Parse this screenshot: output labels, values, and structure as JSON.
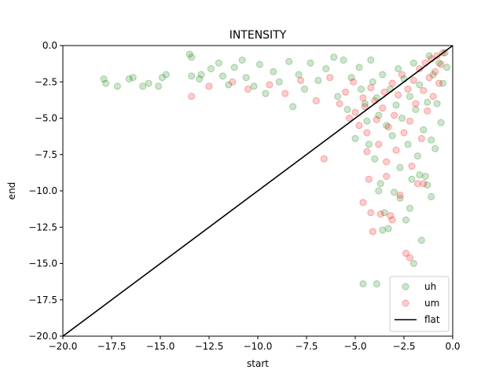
{
  "chart_data": {
    "type": "scatter",
    "title": "INTENSITY",
    "xlabel": "start",
    "ylabel": "end",
    "xlim": [
      -20.0,
      0.0
    ],
    "ylim": [
      -20.0,
      0.0
    ],
    "xticks": [
      "−20.0",
      "−17.5",
      "−15.0",
      "−12.5",
      "−10.0",
      "−7.5",
      "−5.0",
      "−2.5",
      "0.0"
    ],
    "yticks": [
      "0.0",
      "−2.5",
      "−5.0",
      "−7.5",
      "−10.0",
      "−12.5",
      "−15.0",
      "−17.5",
      "−20.0"
    ],
    "grid": false,
    "legend_position": "bottom-right",
    "series": [
      {
        "name": "uh",
        "kind": "scatter",
        "color": "#008000",
        "alpha": 0.2,
        "points": [
          [
            -17.9,
            -2.3
          ],
          [
            -17.8,
            -2.6
          ],
          [
            -17.2,
            -2.8
          ],
          [
            -16.6,
            -2.3
          ],
          [
            -16.4,
            -2.2
          ],
          [
            -15.9,
            -2.8
          ],
          [
            -15.6,
            -2.6
          ],
          [
            -15.1,
            -2.8
          ],
          [
            -14.9,
            -2.2
          ],
          [
            -14.7,
            -2.0
          ],
          [
            -13.5,
            -0.6
          ],
          [
            -13.4,
            -0.8
          ],
          [
            -13.4,
            -2.1
          ],
          [
            -13.0,
            -2.3
          ],
          [
            -12.9,
            -2.0
          ],
          [
            -12.4,
            -1.6
          ],
          [
            -12.0,
            -1.2
          ],
          [
            -11.8,
            -2.1
          ],
          [
            -11.5,
            -2.7
          ],
          [
            -11.2,
            -1.5
          ],
          [
            -10.8,
            -1.0
          ],
          [
            -10.6,
            -2.2
          ],
          [
            -10.2,
            -2.8
          ],
          [
            -9.9,
            -1.3
          ],
          [
            -9.6,
            -3.3
          ],
          [
            -9.2,
            -1.8
          ],
          [
            -8.9,
            -2.5
          ],
          [
            -8.4,
            -1.1
          ],
          [
            -8.2,
            -4.2
          ],
          [
            -7.9,
            -2.0
          ],
          [
            -7.6,
            -3.0
          ],
          [
            -7.3,
            -1.2
          ],
          [
            -6.9,
            -2.4
          ],
          [
            -6.5,
            -1.6
          ],
          [
            -6.1,
            -0.8
          ],
          [
            -5.9,
            -3.5
          ],
          [
            -5.6,
            -1.0
          ],
          [
            -5.4,
            -4.4
          ],
          [
            -5.2,
            -2.2
          ],
          [
            -5.0,
            -6.4
          ],
          [
            -4.8,
            -1.5
          ],
          [
            -4.7,
            -3.0
          ],
          [
            -4.5,
            -4.0
          ],
          [
            -4.4,
            -5.2
          ],
          [
            -4.3,
            -6.8
          ],
          [
            -4.2,
            -1.0
          ],
          [
            -4.1,
            -2.5
          ],
          [
            -4.0,
            -7.8
          ],
          [
            -3.9,
            -3.6
          ],
          [
            -3.8,
            -4.8
          ],
          [
            -3.7,
            -9.5
          ],
          [
            -3.6,
            -2.0
          ],
          [
            -3.5,
            -11.5
          ],
          [
            -3.4,
            -5.5
          ],
          [
            -3.3,
            -12.6
          ],
          [
            -3.2,
            -3.0
          ],
          [
            -3.1,
            -6.2
          ],
          [
            -3.0,
            -10.1
          ],
          [
            -2.9,
            -4.1
          ],
          [
            -2.8,
            -1.6
          ],
          [
            -2.7,
            -8.4
          ],
          [
            -2.6,
            -5.0
          ],
          [
            -2.5,
            -2.3
          ],
          [
            -2.4,
            -12.0
          ],
          [
            -2.3,
            -6.8
          ],
          [
            -2.2,
            -3.5
          ],
          [
            -2.1,
            -9.2
          ],
          [
            -2.0,
            -1.2
          ],
          [
            -1.9,
            -4.4
          ],
          [
            -1.8,
            -7.6
          ],
          [
            -1.7,
            -2.7
          ],
          [
            -1.6,
            -13.4
          ],
          [
            -1.5,
            -5.8
          ],
          [
            -1.4,
            -9.0
          ],
          [
            -1.3,
            -3.9
          ],
          [
            -1.2,
            -0.7
          ],
          [
            -1.1,
            -6.5
          ],
          [
            -1.0,
            -2.0
          ],
          [
            -0.9,
            -7.1
          ],
          [
            -0.8,
            -4.0
          ],
          [
            -0.7,
            -1.2
          ],
          [
            -0.6,
            -5.3
          ],
          [
            -0.5,
            -2.6
          ],
          [
            -0.4,
            -0.5
          ],
          [
            -0.3,
            -1.5
          ],
          [
            -4.6,
            -16.4
          ],
          [
            -3.9,
            -16.4
          ],
          [
            -2.0,
            -15.0
          ],
          [
            -1.3,
            -9.6
          ],
          [
            -1.1,
            -10.4
          ],
          [
            -3.6,
            -12.7
          ],
          [
            -2.7,
            -10.5
          ],
          [
            -2.2,
            -11.2
          ],
          [
            -1.7,
            -8.9
          ],
          [
            -3.8,
            -10.0
          ]
        ]
      },
      {
        "name": "um",
        "kind": "scatter",
        "color": "#ff0000",
        "alpha": 0.2,
        "points": [
          [
            -13.4,
            -3.5
          ],
          [
            -12.5,
            -2.8
          ],
          [
            -11.3,
            -2.5
          ],
          [
            -10.5,
            -3.0
          ],
          [
            -9.4,
            -2.7
          ],
          [
            -8.6,
            -3.3
          ],
          [
            -7.8,
            -2.4
          ],
          [
            -7.0,
            -3.8
          ],
          [
            -6.6,
            -7.8
          ],
          [
            -6.3,
            -2.2
          ],
          [
            -5.8,
            -4.0
          ],
          [
            -5.5,
            -3.2
          ],
          [
            -5.3,
            -5.0
          ],
          [
            -5.1,
            -2.5
          ],
          [
            -5.0,
            -4.6
          ],
          [
            -4.8,
            -5.5
          ],
          [
            -4.6,
            -3.6
          ],
          [
            -4.5,
            -4.2
          ],
          [
            -4.4,
            -6.0
          ],
          [
            -4.3,
            -9.2
          ],
          [
            -4.2,
            -2.9
          ],
          [
            -4.1,
            -12.8
          ],
          [
            -4.0,
            -3.8
          ],
          [
            -3.9,
            -5.1
          ],
          [
            -3.8,
            -6.8
          ],
          [
            -3.7,
            -11.6
          ],
          [
            -3.6,
            -4.3
          ],
          [
            -3.5,
            -3.2
          ],
          [
            -3.4,
            -8.0
          ],
          [
            -3.3,
            -5.6
          ],
          [
            -3.2,
            -11.7
          ],
          [
            -3.1,
            -2.6
          ],
          [
            -3.0,
            -4.8
          ],
          [
            -2.9,
            -7.2
          ],
          [
            -2.8,
            -3.4
          ],
          [
            -2.7,
            -10.3
          ],
          [
            -2.6,
            -2.0
          ],
          [
            -2.5,
            -6.0
          ],
          [
            -2.4,
            -14.3
          ],
          [
            -2.3,
            -3.0
          ],
          [
            -2.2,
            -5.2
          ],
          [
            -2.1,
            -8.3
          ],
          [
            -2.0,
            -2.4
          ],
          [
            -1.9,
            -4.0
          ],
          [
            -1.8,
            -9.5
          ],
          [
            -1.7,
            -1.6
          ],
          [
            -1.6,
            -6.4
          ],
          [
            -1.5,
            -3.1
          ],
          [
            -1.4,
            -1.2
          ],
          [
            -1.3,
            -4.5
          ],
          [
            -1.2,
            -2.2
          ],
          [
            -1.1,
            -0.9
          ],
          [
            -1.0,
            -3.5
          ],
          [
            -0.9,
            -1.8
          ],
          [
            -0.8,
            -0.7
          ],
          [
            -0.7,
            -2.6
          ],
          [
            -0.6,
            -1.3
          ],
          [
            -0.5,
            -0.5
          ],
          [
            -4.4,
            -7.3
          ],
          [
            -4.2,
            -11.5
          ],
          [
            -3.1,
            -12.0
          ],
          [
            -2.2,
            -14.6
          ],
          [
            -1.5,
            -9.5
          ],
          [
            -4.6,
            -10.8
          ],
          [
            -3.4,
            -9.0
          ]
        ]
      },
      {
        "name": "flat",
        "kind": "line",
        "color": "#000000",
        "points": [
          [
            -20.0,
            -20.0
          ],
          [
            0.0,
            0.0
          ]
        ]
      }
    ]
  }
}
